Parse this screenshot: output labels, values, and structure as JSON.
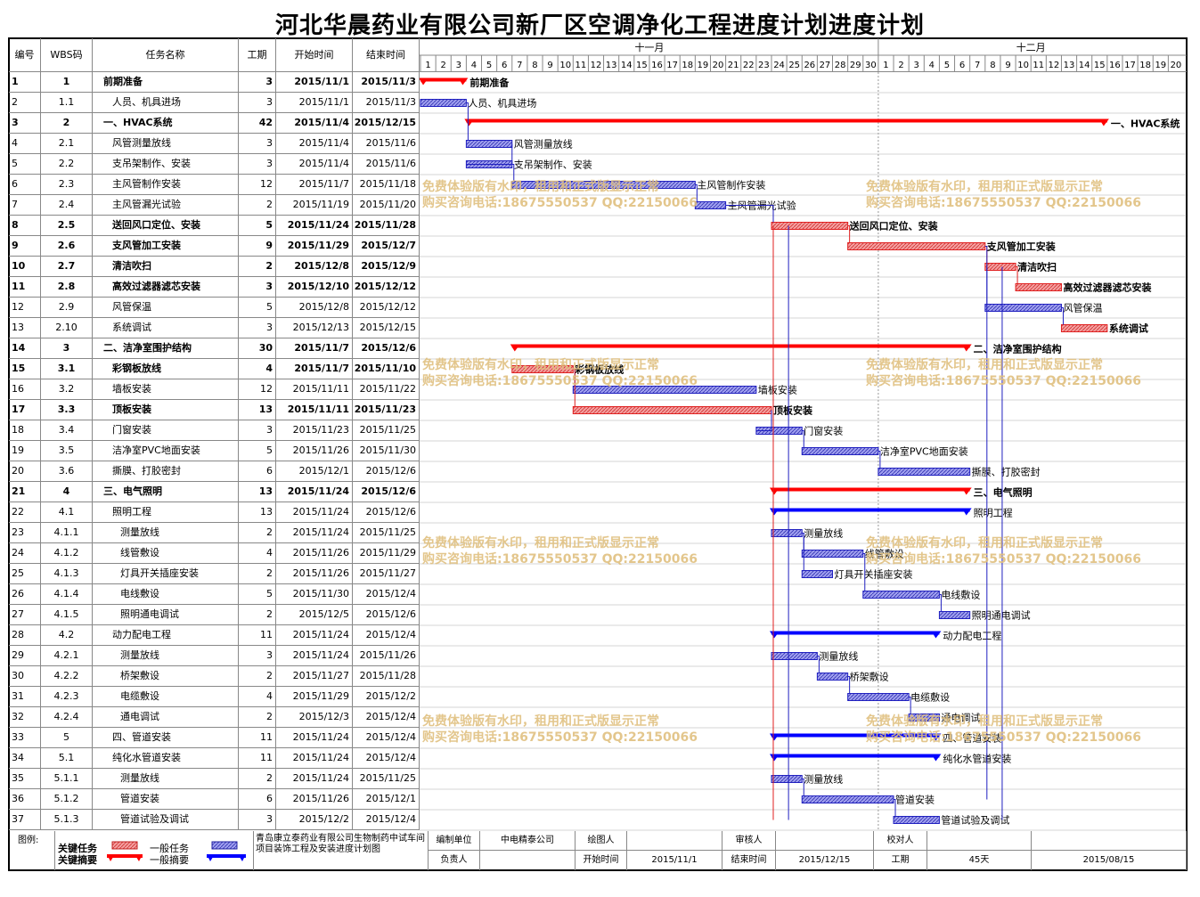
{
  "title": "河北华晨药业有限公司新厂区空调净化工程进度计划进度计划",
  "headers": {
    "id": "编号",
    "wbs": "WBS码",
    "name": "任务名称",
    "dur": "工期",
    "start": "开始时间",
    "end": "结束时间"
  },
  "months": [
    "十一月",
    "十二月"
  ],
  "days_nov": [
    "1",
    "2",
    "3",
    "4",
    "5",
    "6",
    "7",
    "8",
    "9",
    "10",
    "11",
    "12",
    "13",
    "14",
    "15",
    "16",
    "17",
    "18",
    "19",
    "20",
    "21",
    "22",
    "23",
    "24",
    "25",
    "26",
    "27",
    "28",
    "29",
    "30"
  ],
  "days_dec": [
    "1",
    "2",
    "3",
    "4",
    "5",
    "6",
    "7",
    "8",
    "9",
    "10",
    "11",
    "12",
    "13",
    "14",
    "15",
    "16",
    "17",
    "18",
    "19",
    "20"
  ],
  "tasks": [
    {
      "id": "1",
      "wbs": "1",
      "name": "前期准备",
      "dur": "3",
      "start": "2015/11/1",
      "end": "2015/11/3",
      "level": "summary",
      "s": 1,
      "e": 3,
      "label": "前期准备",
      "kind": "crit"
    },
    {
      "id": "2",
      "wbs": "1.1",
      "name": "人员、机具进场",
      "dur": "3",
      "start": "2015/11/1",
      "end": "2015/11/3",
      "level": "task",
      "s": 1,
      "e": 3,
      "label": "人员、机具进场",
      "kind": "norm"
    },
    {
      "id": "3",
      "wbs": "2",
      "name": "一、HVAC系统",
      "dur": "42",
      "start": "2015/11/4",
      "end": "2015/12/15",
      "level": "summary",
      "s": 4,
      "e": 45,
      "label": "一、HVAC系统",
      "kind": "crit"
    },
    {
      "id": "4",
      "wbs": "2.1",
      "name": "风管测量放线",
      "dur": "3",
      "start": "2015/11/4",
      "end": "2015/11/6",
      "level": "task",
      "s": 4,
      "e": 6,
      "label": "风管测量放线",
      "kind": "norm"
    },
    {
      "id": "5",
      "wbs": "2.2",
      "name": "支吊架制作、安装",
      "dur": "3",
      "start": "2015/11/4",
      "end": "2015/11/6",
      "level": "task",
      "s": 4,
      "e": 6,
      "label": "支吊架制作、安装",
      "kind": "norm"
    },
    {
      "id": "6",
      "wbs": "2.3",
      "name": "主风管制作安装",
      "dur": "12",
      "start": "2015/11/7",
      "end": "2015/11/18",
      "level": "task",
      "s": 7,
      "e": 18,
      "label": "主风管制作安装",
      "kind": "norm"
    },
    {
      "id": "7",
      "wbs": "2.4",
      "name": "主风管漏光试验",
      "dur": "2",
      "start": "2015/11/19",
      "end": "2015/11/20",
      "level": "task",
      "s": 19,
      "e": 20,
      "label": "主风管漏光试验",
      "kind": "norm"
    },
    {
      "id": "8",
      "wbs": "2.5",
      "name": "送回风口定位、安装",
      "dur": "5",
      "start": "2015/11/24",
      "end": "2015/11/28",
      "level": "crit",
      "s": 24,
      "e": 28,
      "label": "送回风口定位、安装",
      "kind": "crit"
    },
    {
      "id": "9",
      "wbs": "2.6",
      "name": "支风管加工安装",
      "dur": "9",
      "start": "2015/11/29",
      "end": "2015/12/7",
      "level": "crit",
      "s": 29,
      "e": 37,
      "label": "支风管加工安装",
      "kind": "crit"
    },
    {
      "id": "10",
      "wbs": "2.7",
      "name": "清洁吹扫",
      "dur": "2",
      "start": "2015/12/8",
      "end": "2015/12/9",
      "level": "crit",
      "s": 38,
      "e": 39,
      "label": "清洁吹扫",
      "kind": "crit"
    },
    {
      "id": "11",
      "wbs": "2.8",
      "name": "高效过滤器滤芯安装",
      "dur": "3",
      "start": "2015/12/10",
      "end": "2015/12/12",
      "level": "crit",
      "s": 40,
      "e": 42,
      "label": "高效过滤器滤芯安装",
      "kind": "crit"
    },
    {
      "id": "12",
      "wbs": "2.9",
      "name": "风管保温",
      "dur": "5",
      "start": "2015/12/8",
      "end": "2015/12/12",
      "level": "task",
      "s": 38,
      "e": 42,
      "label": "风管保温",
      "kind": "norm"
    },
    {
      "id": "13",
      "wbs": "2.10",
      "name": "系统调试",
      "dur": "3",
      "start": "2015/12/13",
      "end": "2015/12/15",
      "level": "task",
      "s": 43,
      "e": 45,
      "label": "系统调试",
      "kind": "crit"
    },
    {
      "id": "14",
      "wbs": "3",
      "name": "二、洁净室围护结构",
      "dur": "30",
      "start": "2015/11/7",
      "end": "2015/12/6",
      "level": "summary",
      "s": 7,
      "e": 36,
      "label": "二、洁净室围护结构",
      "kind": "crit"
    },
    {
      "id": "15",
      "wbs": "3.1",
      "name": "彩钢板放线",
      "dur": "4",
      "start": "2015/11/7",
      "end": "2015/11/10",
      "level": "crit",
      "s": 7,
      "e": 10,
      "label": "彩钢板放线",
      "kind": "crit"
    },
    {
      "id": "16",
      "wbs": "3.2",
      "name": "墙板安装",
      "dur": "12",
      "start": "2015/11/11",
      "end": "2015/11/22",
      "level": "task",
      "s": 11,
      "e": 22,
      "label": "墙板安装",
      "kind": "norm"
    },
    {
      "id": "17",
      "wbs": "3.3",
      "name": "顶板安装",
      "dur": "13",
      "start": "2015/11/11",
      "end": "2015/11/23",
      "level": "crit",
      "s": 11,
      "e": 23,
      "label": "顶板安装",
      "kind": "crit"
    },
    {
      "id": "18",
      "wbs": "3.4",
      "name": "门窗安装",
      "dur": "3",
      "start": "2015/11/23",
      "end": "2015/11/25",
      "level": "task",
      "s": 23,
      "e": 25,
      "label": "门窗安装",
      "kind": "norm"
    },
    {
      "id": "19",
      "wbs": "3.5",
      "name": "洁净室PVC地面安装",
      "dur": "5",
      "start": "2015/11/26",
      "end": "2015/11/30",
      "level": "task",
      "s": 26,
      "e": 30,
      "label": "洁净室PVC地面安装",
      "kind": "norm"
    },
    {
      "id": "20",
      "wbs": "3.6",
      "name": "撕膜、打胶密封",
      "dur": "6",
      "start": "2015/12/1",
      "end": "2015/12/6",
      "level": "task",
      "s": 31,
      "e": 36,
      "label": "撕膜、打胶密封",
      "kind": "norm"
    },
    {
      "id": "21",
      "wbs": "4",
      "name": "三、电气照明",
      "dur": "13",
      "start": "2015/11/24",
      "end": "2015/12/6",
      "level": "summary",
      "s": 24,
      "e": 36,
      "label": "三、电气照明",
      "kind": "crit"
    },
    {
      "id": "22",
      "wbs": "4.1",
      "name": "照明工程",
      "dur": "13",
      "start": "2015/11/24",
      "end": "2015/12/6",
      "level": "sub",
      "s": 24,
      "e": 36,
      "label": "照明工程",
      "kind": "normsum"
    },
    {
      "id": "23",
      "wbs": "4.1.1",
      "name": "测量放线",
      "dur": "2",
      "start": "2015/11/24",
      "end": "2015/11/25",
      "level": "task2",
      "s": 24,
      "e": 25,
      "label": "测量放线",
      "kind": "norm"
    },
    {
      "id": "24",
      "wbs": "4.1.2",
      "name": "线管敷设",
      "dur": "4",
      "start": "2015/11/26",
      "end": "2015/11/29",
      "level": "task2",
      "s": 26,
      "e": 29,
      "label": "线管敷设",
      "kind": "norm"
    },
    {
      "id": "25",
      "wbs": "4.1.3",
      "name": "灯具开关插座安装",
      "dur": "2",
      "start": "2015/11/26",
      "end": "2015/11/27",
      "level": "task2",
      "s": 26,
      "e": 27,
      "label": "灯具开关插座安装",
      "kind": "norm"
    },
    {
      "id": "26",
      "wbs": "4.1.4",
      "name": "电线敷设",
      "dur": "5",
      "start": "2015/11/30",
      "end": "2015/12/4",
      "level": "task2",
      "s": 30,
      "e": 34,
      "label": "电线敷设",
      "kind": "norm"
    },
    {
      "id": "27",
      "wbs": "4.1.5",
      "name": "照明通电调试",
      "dur": "2",
      "start": "2015/12/5",
      "end": "2015/12/6",
      "level": "task2",
      "s": 35,
      "e": 36,
      "label": "照明通电调试",
      "kind": "norm"
    },
    {
      "id": "28",
      "wbs": "4.2",
      "name": "动力配电工程",
      "dur": "11",
      "start": "2015/11/24",
      "end": "2015/12/4",
      "level": "sub",
      "s": 24,
      "e": 34,
      "label": "动力配电工程",
      "kind": "normsum"
    },
    {
      "id": "29",
      "wbs": "4.2.1",
      "name": "测量放线",
      "dur": "3",
      "start": "2015/11/24",
      "end": "2015/11/26",
      "level": "task2",
      "s": 24,
      "e": 26,
      "label": "测量放线",
      "kind": "norm"
    },
    {
      "id": "30",
      "wbs": "4.2.2",
      "name": "桥架敷设",
      "dur": "2",
      "start": "2015/11/27",
      "end": "2015/11/28",
      "level": "task2",
      "s": 27,
      "e": 28,
      "label": "桥架敷设",
      "kind": "norm"
    },
    {
      "id": "31",
      "wbs": "4.2.3",
      "name": "电缆敷设",
      "dur": "4",
      "start": "2015/11/29",
      "end": "2015/12/2",
      "level": "task2",
      "s": 29,
      "e": 32,
      "label": "电缆敷设",
      "kind": "norm"
    },
    {
      "id": "32",
      "wbs": "4.2.4",
      "name": "通电调试",
      "dur": "2",
      "start": "2015/12/3",
      "end": "2015/12/4",
      "level": "task2",
      "s": 33,
      "e": 34,
      "label": "通电调试",
      "kind": "norm"
    },
    {
      "id": "33",
      "wbs": "5",
      "name": "四、管道安装",
      "dur": "11",
      "start": "2015/11/24",
      "end": "2015/12/4",
      "level": "sub",
      "s": 24,
      "e": 34,
      "label": "四、管道安装",
      "kind": "normsum"
    },
    {
      "id": "34",
      "wbs": "5.1",
      "name": "纯化水管道安装",
      "dur": "11",
      "start": "2015/11/24",
      "end": "2015/12/4",
      "level": "sub",
      "s": 24,
      "e": 34,
      "label": "纯化水管道安装",
      "kind": "normsum"
    },
    {
      "id": "35",
      "wbs": "5.1.1",
      "name": "测量放线",
      "dur": "2",
      "start": "2015/11/24",
      "end": "2015/11/25",
      "level": "task2",
      "s": 24,
      "e": 25,
      "label": "测量放线",
      "kind": "norm"
    },
    {
      "id": "36",
      "wbs": "5.1.2",
      "name": "管道安装",
      "dur": "6",
      "start": "2015/11/26",
      "end": "2015/12/1",
      "level": "task2",
      "s": 26,
      "e": 31,
      "label": "管道安装",
      "kind": "norm"
    },
    {
      "id": "37",
      "wbs": "5.1.3",
      "name": "管道试验及调试",
      "dur": "3",
      "start": "2015/12/2",
      "end": "2015/12/4",
      "level": "task2",
      "s": 32,
      "e": 34,
      "label": "管道试验及调试",
      "kind": "norm"
    }
  ],
  "watermark": {
    "line1": "免费体验版有水印，租用和正式版显示正常",
    "line2": "购买咨询电话:18675550537 QQ:22150066"
  },
  "legend": {
    "title": "图例:",
    "crit_task": "关键任务",
    "crit_sum": "关键摘要",
    "norm_task": "一般任务",
    "norm_sum": "一般摘要",
    "project": "青岛康立泰药业有限公司生物制药中试车间项目装饰工程及安装进度计划图",
    "org_label": "编制单位",
    "org": "中电精泰公司",
    "drawer_label": "绘图人",
    "drawer": "",
    "reviewer_label": "审核人",
    "reviewer": "",
    "checker_label": "校对人",
    "checker": "",
    "lead_label": "负责人",
    "lead": "",
    "start_label": "开始时间",
    "start": "2015/11/1",
    "end_label": "结束时间",
    "end": "2015/12/15",
    "dur_label": "工期",
    "dur": "45天",
    "date": "2015/08/15"
  },
  "colors": {
    "crit": "#e02020",
    "crit_fill": "#f08080",
    "norm": "#2020c0",
    "norm_fill": "#8080e0",
    "summary": "#ff0000",
    "normsum": "#0000ff"
  }
}
